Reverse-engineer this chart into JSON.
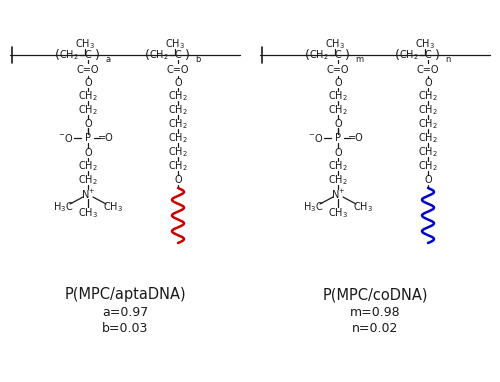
{
  "bg_color": "#ffffff",
  "text_color": "#1a1a1a",
  "red_color": "#cc0000",
  "blue_color": "#0000cc",
  "label_left": "P(MPC/aptaDNA)",
  "label_right": "P(MPC/coDNA)",
  "vals_left_1": "a=0.97",
  "vals_left_2": "b=0.03",
  "vals_right_1": "m=0.98",
  "vals_right_2": "n=0.02",
  "sub_left_a": "a",
  "sub_left_b": "b",
  "sub_right_m": "m",
  "sub_right_n": "n"
}
